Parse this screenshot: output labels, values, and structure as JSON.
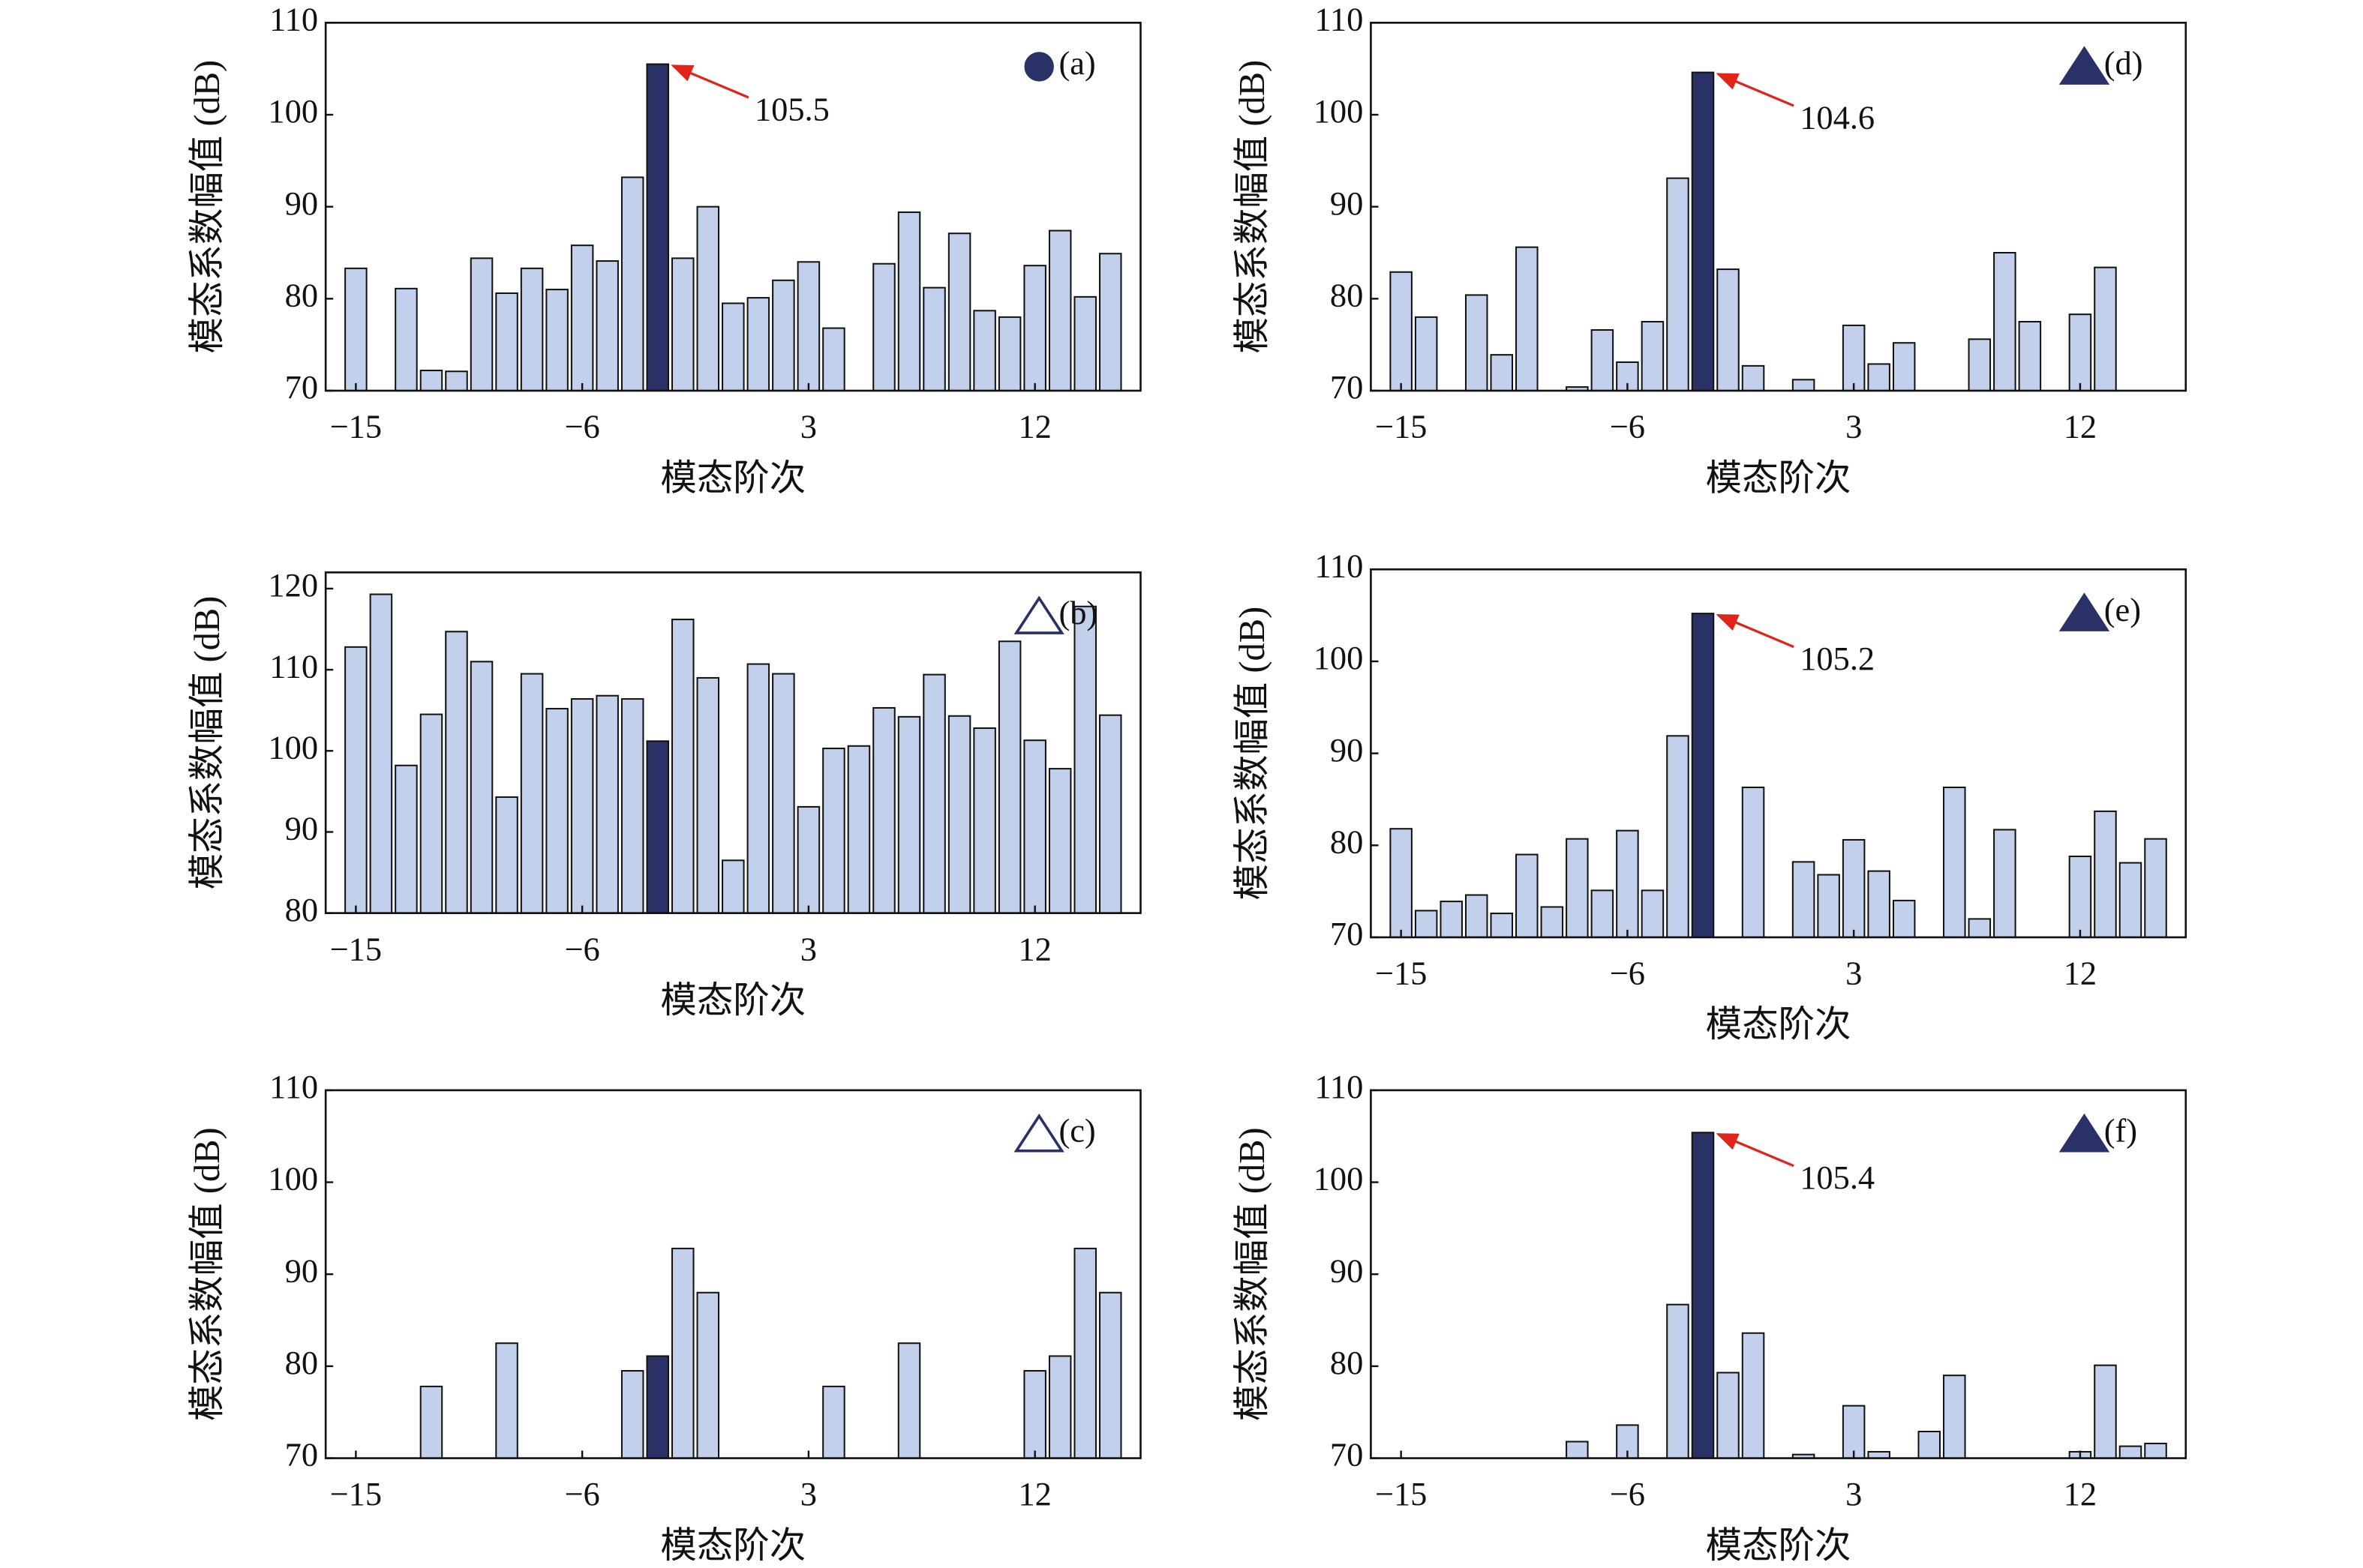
{
  "chart_data": [
    {
      "type": "bar",
      "label": "(a)",
      "marker": "circle",
      "marker_filled": true,
      "x": [
        -15,
        -13,
        -12,
        -11,
        -10,
        -9,
        -8,
        -7,
        -6,
        -5,
        -4,
        -3,
        -2,
        -1,
        0,
        1,
        2,
        3,
        4,
        6,
        7,
        8,
        9,
        10,
        11,
        12,
        13,
        14,
        15
      ],
      "values": [
        83.3,
        81.1,
        72.2,
        72.1,
        84.4,
        80.6,
        83.3,
        81.0,
        85.8,
        84.1,
        93.2,
        105.5,
        84.4,
        90.0,
        79.5,
        80.1,
        82.0,
        84.0,
        76.8,
        83.8,
        89.4,
        81.2,
        87.1,
        78.7,
        78.0,
        83.6,
        87.4,
        80.2,
        84.9
      ],
      "highlight": -3,
      "annotation": "105.5",
      "xlabel": "模态阶次",
      "ylabel": "模态系数幅值 (dB)",
      "xlim": [
        -16.2,
        16.2
      ],
      "ylim": [
        70,
        110
      ],
      "xticks": [
        {
          "value": -15,
          "label": "−15"
        },
        {
          "value": -6,
          "label": "−6"
        },
        3,
        12
      ],
      "yticks": [
        70,
        80,
        90,
        100,
        110
      ],
      "color": "#c2d0ec",
      "highlight_color": "#2a3166"
    },
    {
      "type": "bar",
      "label": "(b)",
      "marker": "triangle",
      "marker_filled": false,
      "x": [
        -15,
        -14,
        -13,
        -12,
        -11,
        -10,
        -9,
        -8,
        -7,
        -6,
        -5,
        -4,
        -3,
        -2,
        -1,
        0,
        1,
        2,
        3,
        4,
        5,
        6,
        7,
        8,
        9,
        10,
        11,
        12,
        13,
        14,
        15
      ],
      "values": [
        112.8,
        119.3,
        98.2,
        104.5,
        114.7,
        111.0,
        94.3,
        109.5,
        105.2,
        106.4,
        106.8,
        106.4,
        101.2,
        116.2,
        109.0,
        86.5,
        110.7,
        109.5,
        93.1,
        100.3,
        100.6,
        105.3,
        104.2,
        109.4,
        104.3,
        102.8,
        113.5,
        101.3,
        97.8,
        117.8,
        104.4
      ],
      "highlight": -3,
      "xlabel": "模态阶次",
      "ylabel": "模态系数幅值 (dB)",
      "xlim": [
        -16.2,
        16.2
      ],
      "ylim": [
        80,
        122
      ],
      "xticks": [
        {
          "value": -15,
          "label": "−15"
        },
        {
          "value": -6,
          "label": "−6"
        },
        3,
        12
      ],
      "yticks": [
        80,
        90,
        100,
        110,
        120
      ],
      "color": "#c2d0ec",
      "highlight_color": "#2a3166"
    },
    {
      "type": "bar",
      "label": "(c)",
      "marker": "triangle",
      "marker_filled": false,
      "x": [
        -12,
        -9,
        -4,
        -3,
        -2,
        -1,
        4,
        7,
        12,
        13,
        14,
        15
      ],
      "values": [
        77.8,
        82.5,
        79.5,
        81.1,
        92.8,
        88.0,
        77.8,
        82.5,
        79.5,
        81.1,
        92.8,
        88.0
      ],
      "highlight": -3,
      "xlabel": "模态阶次",
      "ylabel": "模态系数幅值 (dB)",
      "xlim": [
        -16.2,
        16.2
      ],
      "ylim": [
        70,
        110
      ],
      "xticks": [
        {
          "value": -15,
          "label": "−15"
        },
        {
          "value": -6,
          "label": "−6"
        },
        3,
        12
      ],
      "yticks": [
        70,
        80,
        90,
        100,
        110
      ],
      "color": "#c2d0ec",
      "highlight_color": "#2a3166"
    },
    {
      "type": "bar",
      "label": "(d)",
      "marker": "triangle",
      "marker_filled": true,
      "x": [
        -15,
        -14,
        -12,
        -11,
        -10,
        -8,
        -7,
        -6,
        -5,
        -4,
        -3,
        -2,
        -1,
        1,
        3,
        4,
        5,
        8,
        9,
        10,
        12,
        13
      ],
      "values": [
        82.9,
        78.0,
        80.4,
        73.9,
        85.6,
        70.4,
        76.6,
        73.1,
        77.5,
        93.1,
        104.6,
        83.2,
        72.7,
        71.2,
        77.1,
        72.9,
        75.2,
        75.6,
        85.0,
        77.5,
        78.3,
        83.4
      ],
      "highlight": -3,
      "annotation": "104.6",
      "xlabel": "模态阶次",
      "ylabel": "模态系数幅值 (dB)",
      "xlim": [
        -16.2,
        16.2
      ],
      "ylim": [
        70,
        110
      ],
      "xticks": [
        {
          "value": -15,
          "label": "−15"
        },
        {
          "value": -6,
          "label": "−6"
        },
        3,
        12
      ],
      "yticks": [
        70,
        80,
        90,
        100,
        110
      ],
      "color": "#c2d0ec",
      "highlight_color": "#2a3166"
    },
    {
      "type": "bar",
      "label": "(e)",
      "marker": "triangle",
      "marker_filled": true,
      "x": [
        -15,
        -14,
        -13,
        -12,
        -11,
        -10,
        -9,
        -8,
        -7,
        -6,
        -5,
        -4,
        -3,
        -1,
        1,
        2,
        3,
        4,
        5,
        7,
        8,
        9,
        12,
        13,
        14,
        15
      ],
      "values": [
        81.8,
        72.9,
        73.9,
        74.6,
        72.6,
        79.0,
        73.3,
        80.7,
        75.1,
        81.6,
        75.1,
        91.9,
        105.2,
        86.3,
        78.2,
        76.8,
        80.6,
        77.2,
        74.0,
        86.3,
        72.0,
        81.7,
        78.8,
        83.7,
        78.1,
        80.7
      ],
      "highlight": -3,
      "annotation": "105.2",
      "xlabel": "模态阶次",
      "ylabel": "模态系数幅值 (dB)",
      "xlim": [
        -16.2,
        16.2
      ],
      "ylim": [
        70,
        110
      ],
      "xticks": [
        {
          "value": -15,
          "label": "−15"
        },
        {
          "value": -6,
          "label": "−6"
        },
        3,
        12
      ],
      "yticks": [
        70,
        80,
        90,
        100,
        110
      ],
      "color": "#c2d0ec",
      "highlight_color": "#2a3166"
    },
    {
      "type": "bar",
      "label": "(f)",
      "marker": "triangle",
      "marker_filled": true,
      "x": [
        -8,
        -6,
        -4,
        -3,
        -2,
        -1,
        1,
        3,
        4,
        6,
        7,
        12,
        13,
        14,
        15
      ],
      "values": [
        71.8,
        73.6,
        86.7,
        105.4,
        79.3,
        83.6,
        70.4,
        75.7,
        70.7,
        72.9,
        79.0,
        70.7,
        80.1,
        71.3,
        71.6
      ],
      "highlight": -3,
      "annotation": "105.4",
      "xlabel": "模态阶次",
      "ylabel": "模态系数幅值 (dB)",
      "xlim": [
        -16.2,
        16.2
      ],
      "ylim": [
        70,
        110
      ],
      "xticks": [
        {
          "value": -15,
          "label": "−15"
        },
        {
          "value": -6,
          "label": "−6"
        },
        3,
        12
      ],
      "yticks": [
        70,
        80,
        90,
        100,
        110
      ],
      "color": "#c2d0ec",
      "highlight_color": "#2a3166"
    }
  ]
}
